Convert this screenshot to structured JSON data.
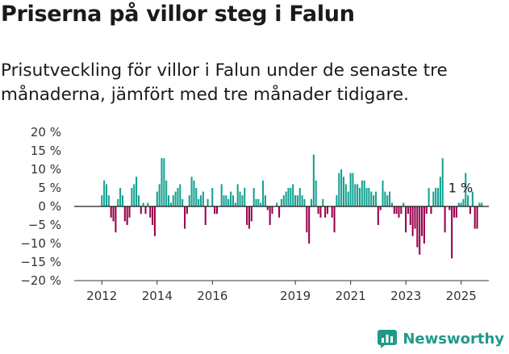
{
  "header": {
    "title": "Priserna på villor steg i Falun",
    "subtitle": "Prisutveckling för villor i Falun under de senaste tre månaderna, jämfört med tre månader tidigare."
  },
  "chart_data": {
    "type": "bar",
    "title": "",
    "xlabel": "",
    "ylabel": "",
    "ylim": [
      -20,
      20
    ],
    "y_ticks": [
      20,
      15,
      10,
      5,
      0,
      -5,
      -10,
      -15,
      -20
    ],
    "y_tick_labels": [
      "20 %",
      "15 %",
      "10 %",
      "5 %",
      "0 %",
      "−5 %",
      "−10 %",
      "−15 %",
      "−20 %"
    ],
    "x_tick_labels": [
      "2012",
      "2014",
      "2016",
      "2019",
      "2021",
      "2023",
      "2025"
    ],
    "x_tick_positions": [
      2012,
      2014,
      2016,
      2019,
      2021,
      2023,
      2025
    ],
    "colors": {
      "positive": "#13a291",
      "negative": "#99004d",
      "zero_line": "#1a1a1a",
      "axis": "#333333"
    },
    "annotation": {
      "text": "1 %",
      "x": 2025.0,
      "y": 1
    },
    "x_start": 2012.0,
    "x_step": 0.0833,
    "values": [
      3,
      7,
      6,
      3,
      -3,
      -4,
      -7,
      2,
      5,
      3,
      -4,
      -5,
      -3,
      5,
      6,
      8,
      3,
      -2,
      1,
      -2,
      1,
      -3,
      -5,
      -8,
      4,
      6,
      13,
      13,
      7,
      3,
      1,
      3,
      4,
      5,
      6,
      2,
      -6,
      -2,
      3,
      8,
      7,
      5,
      2,
      3,
      4,
      -5,
      2,
      0,
      5,
      -2,
      -2,
      0,
      6,
      3,
      3,
      2,
      4,
      3,
      1,
      6,
      4,
      3,
      5,
      -5,
      -6,
      -4,
      5,
      2,
      2,
      1,
      7,
      3,
      -1,
      -5,
      -2,
      0,
      1,
      -3,
      2,
      3,
      4,
      5,
      5,
      6,
      3,
      3,
      5,
      3,
      2,
      -7,
      -10,
      2,
      14,
      7,
      -2,
      -3,
      2,
      -3,
      -2,
      0,
      -3,
      -7,
      3,
      9,
      10,
      8,
      6,
      4,
      9,
      9,
      6,
      6,
      5,
      7,
      7,
      5,
      5,
      4,
      3,
      4,
      -5,
      -1,
      7,
      4,
      3,
      4,
      1,
      -2,
      -2,
      -3,
      -2,
      1,
      -7,
      -2,
      -5,
      -8,
      -6,
      -11,
      -13,
      -8,
      -10,
      -2,
      5,
      -2,
      4,
      5,
      5,
      8,
      13,
      -7,
      0,
      -1,
      -14,
      -3,
      -3,
      1,
      1,
      2,
      9,
      3,
      -2,
      4,
      -6,
      -6,
      1,
      1
    ]
  },
  "brand": {
    "name": "Newsworthy"
  }
}
